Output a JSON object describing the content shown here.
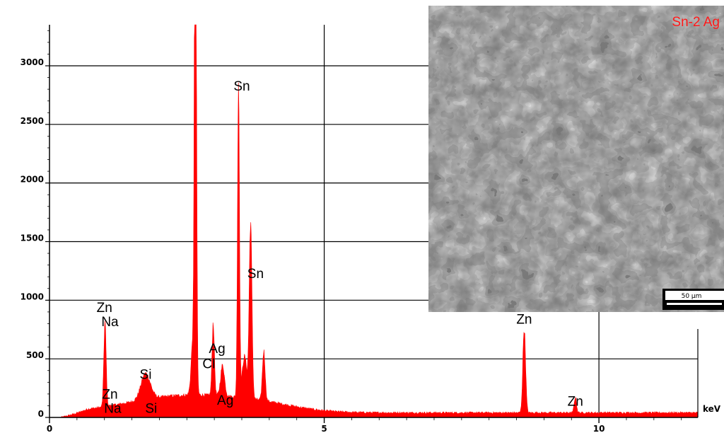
{
  "chart_data": {
    "type": "area",
    "x_unit": "keV",
    "xlim": [
      0,
      11.8
    ],
    "ylim": [
      0,
      3350
    ],
    "xticks": [
      0,
      5,
      10
    ],
    "yticks": [
      0,
      500,
      1000,
      1500,
      2000,
      2500,
      3000
    ],
    "grid": true,
    "color": "#ff0000",
    "baseline": 40,
    "peaks": [
      {
        "x": 1.01,
        "y": 720,
        "w": 0.03
      },
      {
        "x": 1.75,
        "y": 220,
        "w": 0.12
      },
      {
        "x": 2.62,
        "y": 550,
        "w": 0.05
      },
      {
        "x": 2.65,
        "y": 2100,
        "w": 0.02
      },
      {
        "x": 2.66,
        "y": 3350,
        "w": 0.025
      },
      {
        "x": 2.98,
        "y": 620,
        "w": 0.03
      },
      {
        "x": 3.15,
        "y": 260,
        "w": 0.05
      },
      {
        "x": 3.44,
        "y": 2700,
        "w": 0.025
      },
      {
        "x": 3.55,
        "y": 350,
        "w": 0.06
      },
      {
        "x": 3.66,
        "y": 1500,
        "w": 0.035
      },
      {
        "x": 3.9,
        "y": 420,
        "w": 0.035
      },
      {
        "x": 8.64,
        "y": 720,
        "w": 0.035
      },
      {
        "x": 9.57,
        "y": 130,
        "w": 0.03
      }
    ],
    "labels": [
      {
        "text": "Zn",
        "x": 1.0,
        "y": 900
      },
      {
        "text": "Na",
        "x": 1.1,
        "y": 780
      },
      {
        "text": "Si",
        "x": 1.75,
        "y": 330
      },
      {
        "text": "Zn",
        "x": 1.1,
        "y": 160
      },
      {
        "text": "Na",
        "x": 1.15,
        "y": 40
      },
      {
        "text": "Si",
        "x": 1.85,
        "y": 40
      },
      {
        "text": "Ag",
        "x": 3.05,
        "y": 550
      },
      {
        "text": "Cl",
        "x": 2.9,
        "y": 420
      },
      {
        "text": "Ag",
        "x": 3.2,
        "y": 110
      },
      {
        "text": "Sn",
        "x": 3.5,
        "y": 2790
      },
      {
        "text": "Sn",
        "x": 3.75,
        "y": 1190
      },
      {
        "text": "Zn",
        "x": 8.64,
        "y": 800
      },
      {
        "text": "Zn",
        "x": 9.57,
        "y": 100
      }
    ]
  },
  "inset": {
    "title": "Sn-2 Ag",
    "scale_bar": "50 µm"
  }
}
